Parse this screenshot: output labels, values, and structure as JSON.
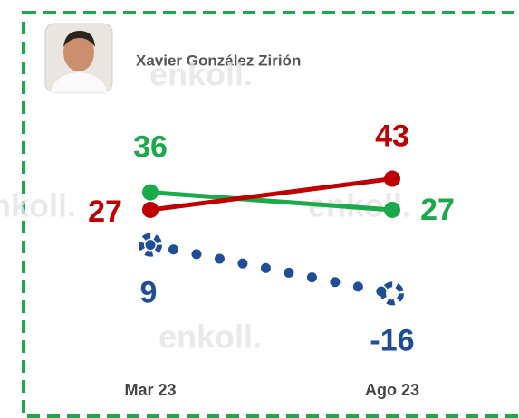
{
  "chart_data": {
    "type": "line",
    "title": "Xavier González Zirión",
    "watermark": "enkoll.",
    "categories": [
      "Mar 23",
      "Ago 23"
    ],
    "series": [
      {
        "color": "#1aaa4b",
        "style": "solid",
        "values": [
          36,
          27
        ]
      },
      {
        "color": "#c00000",
        "style": "solid",
        "values": [
          27,
          43
        ]
      },
      {
        "color": "#1f4e96",
        "style": "dotted",
        "values": [
          9,
          -16
        ]
      }
    ],
    "ylim": [
      -30,
      60
    ]
  }
}
